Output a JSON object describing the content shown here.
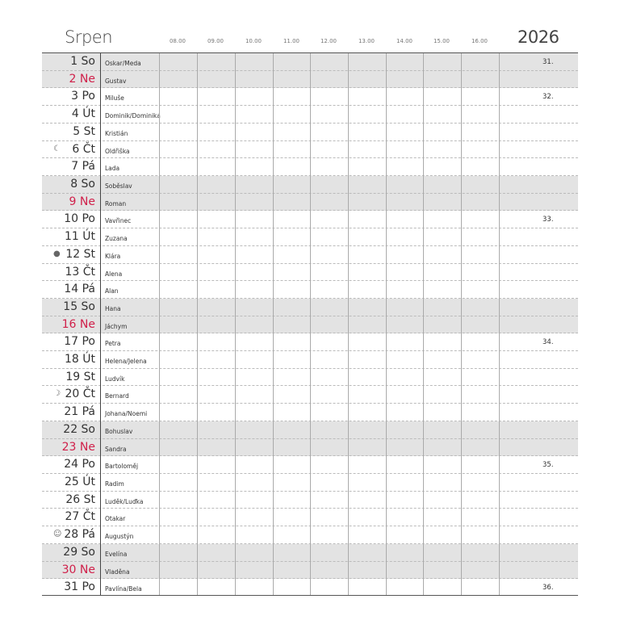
{
  "header": {
    "month": "Srpen",
    "year": "2026",
    "hours": [
      "08.00",
      "09.00",
      "10.00",
      "11.00",
      "12.00",
      "13.00",
      "14.00",
      "15.00",
      "16.00"
    ]
  },
  "days": [
    {
      "label": "1 So",
      "name": "Oskar/Meda",
      "weekend": true,
      "week": "31."
    },
    {
      "label": "2 Ne",
      "name": "Gustav",
      "weekend": true,
      "sunday": true
    },
    {
      "label": "3 Po",
      "name": "Miluše",
      "week": "32."
    },
    {
      "label": "4 Út",
      "name": "Dominik/Dominika"
    },
    {
      "label": "5 St",
      "name": "Kristián"
    },
    {
      "label": "6 Čt",
      "name": "Oldřiška",
      "moon": "last-quarter",
      "moon_glyph": "☾"
    },
    {
      "label": "7 Pá",
      "name": "Lada"
    },
    {
      "label": "8 So",
      "name": "Soběslav",
      "weekend": true
    },
    {
      "label": "9 Ne",
      "name": "Roman",
      "weekend": true,
      "sunday": true
    },
    {
      "label": "10 Po",
      "name": "Vavřinec",
      "week": "33."
    },
    {
      "label": "11 Út",
      "name": "Zuzana"
    },
    {
      "label": "12 St",
      "name": "Klára",
      "moon": "new-moon",
      "moon_glyph": "●"
    },
    {
      "label": "13 Čt",
      "name": "Alena"
    },
    {
      "label": "14 Pá",
      "name": "Alan"
    },
    {
      "label": "15 So",
      "name": "Hana",
      "weekend": true
    },
    {
      "label": "16 Ne",
      "name": "Jáchym",
      "weekend": true,
      "sunday": true
    },
    {
      "label": "17 Po",
      "name": "Petra",
      "week": "34."
    },
    {
      "label": "18 Út",
      "name": "Helena/Jelena"
    },
    {
      "label": "19 St",
      "name": "Ludvík"
    },
    {
      "label": "20 Čt",
      "name": "Bernard",
      "moon": "first-quarter",
      "moon_glyph": "☽"
    },
    {
      "label": "21 Pá",
      "name": "Johana/Noemi"
    },
    {
      "label": "22 So",
      "name": "Bohuslav",
      "weekend": true
    },
    {
      "label": "23 Ne",
      "name": "Sandra",
      "weekend": true,
      "sunday": true
    },
    {
      "label": "24 Po",
      "name": "Bartoloměj",
      "week": "35."
    },
    {
      "label": "25 Út",
      "name": "Radim"
    },
    {
      "label": "26 St",
      "name": "Luděk/Luďka"
    },
    {
      "label": "27 Čt",
      "name": "Otakar"
    },
    {
      "label": "28 Pá",
      "name": "Augustýn",
      "moon": "full-moon",
      "moon_glyph": "☺"
    },
    {
      "label": "29 So",
      "name": "Evelína",
      "weekend": true
    },
    {
      "label": "30 Ne",
      "name": "Vladěna",
      "weekend": true,
      "sunday": true
    },
    {
      "label": "31 Po",
      "name": "Pavlína/Bela",
      "week": "36."
    }
  ],
  "colors": {
    "sunday": "#d0204a",
    "weekend_bg": "#e3e3e3"
  }
}
